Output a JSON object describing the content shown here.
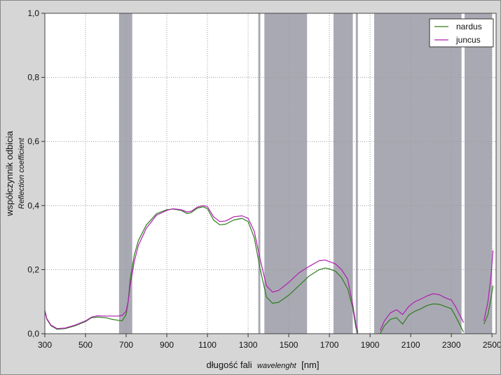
{
  "chart_data": {
    "type": "line",
    "xlabel_main": "długość fali",
    "xlabel_italic": "wavelenght",
    "xlabel_unit": "[nm]",
    "ylabel_main": "współczynnik odbicia",
    "ylabel_italic": "Reflection coefficient",
    "xlim": [
      300,
      2520
    ],
    "ylim": [
      0,
      1.0
    ],
    "x_ticks": [
      300,
      500,
      700,
      900,
      1100,
      1300,
      1500,
      1700,
      1900,
      2100,
      2300,
      2500
    ],
    "x_tick_labels": [
      "300",
      "500",
      "700",
      "900",
      "1100",
      "1300",
      "1500",
      "1700",
      "1900",
      "2100",
      "2300",
      "2500"
    ],
    "y_ticks": [
      0,
      0.2,
      0.4,
      0.6,
      0.8,
      1.0
    ],
    "y_tick_labels": [
      "0,0",
      "0,2",
      "0,4",
      "0,6",
      "0,8",
      "1,0"
    ],
    "grid": true,
    "legend_position": "top-right",
    "shaded_bands": [
      [
        665,
        730
      ],
      [
        1350,
        1360
      ],
      [
        1380,
        1590
      ],
      [
        1720,
        1815
      ],
      [
        1830,
        1840
      ],
      [
        1920,
        2350
      ],
      [
        2365,
        2500
      ]
    ],
    "series": [
      {
        "name": "nardus",
        "color": "#2e7d1e",
        "segments": [
          [
            [
              300,
              0.07
            ],
            [
              310,
              0.045
            ],
            [
              330,
              0.025
            ],
            [
              360,
              0.014
            ],
            [
              400,
              0.016
            ],
            [
              450,
              0.025
            ],
            [
              500,
              0.038
            ],
            [
              530,
              0.05
            ],
            [
              560,
              0.052
            ],
            [
              600,
              0.05
            ],
            [
              630,
              0.045
            ],
            [
              660,
              0.042
            ],
            [
              680,
              0.04
            ],
            [
              700,
              0.06
            ],
            [
              710,
              0.1
            ],
            [
              720,
              0.17
            ],
            [
              740,
              0.245
            ],
            [
              760,
              0.29
            ],
            [
              800,
              0.34
            ],
            [
              850,
              0.375
            ],
            [
              900,
              0.387
            ],
            [
              930,
              0.389
            ],
            [
              970,
              0.385
            ],
            [
              1000,
              0.375
            ],
            [
              1020,
              0.378
            ],
            [
              1050,
              0.392
            ],
            [
              1080,
              0.396
            ],
            [
              1100,
              0.39
            ],
            [
              1130,
              0.355
            ],
            [
              1160,
              0.34
            ],
            [
              1190,
              0.342
            ],
            [
              1230,
              0.355
            ],
            [
              1270,
              0.36
            ],
            [
              1300,
              0.35
            ],
            [
              1330,
              0.3
            ],
            [
              1360,
              0.2
            ],
            [
              1390,
              0.115
            ],
            [
              1420,
              0.095
            ],
            [
              1450,
              0.098
            ],
            [
              1500,
              0.12
            ],
            [
              1550,
              0.15
            ],
            [
              1600,
              0.18
            ],
            [
              1650,
              0.2
            ],
            [
              1680,
              0.205
            ],
            [
              1700,
              0.202
            ],
            [
              1730,
              0.195
            ],
            [
              1760,
              0.175
            ],
            [
              1790,
              0.14
            ],
            [
              1815,
              0.08
            ],
            [
              1830,
              0.02
            ],
            [
              1840,
              0.0
            ]
          ],
          [
            [
              1950,
              0.0
            ],
            [
              1970,
              0.025
            ],
            [
              2000,
              0.045
            ],
            [
              2030,
              0.05
            ],
            [
              2060,
              0.03
            ],
            [
              2090,
              0.058
            ],
            [
              2120,
              0.07
            ],
            [
              2150,
              0.078
            ],
            [
              2180,
              0.088
            ],
            [
              2210,
              0.093
            ],
            [
              2240,
              0.092
            ],
            [
              2270,
              0.085
            ],
            [
              2300,
              0.078
            ],
            [
              2320,
              0.055
            ],
            [
              2340,
              0.03
            ],
            [
              2360,
              0.005
            ]
          ],
          [
            [
              2460,
              0.03
            ],
            [
              2480,
              0.06
            ],
            [
              2495,
              0.11
            ],
            [
              2505,
              0.15
            ]
          ]
        ]
      },
      {
        "name": "juncus",
        "color": "#b01eb0",
        "segments": [
          [
            [
              300,
              0.073
            ],
            [
              310,
              0.047
            ],
            [
              330,
              0.027
            ],
            [
              360,
              0.016
            ],
            [
              400,
              0.018
            ],
            [
              450,
              0.027
            ],
            [
              500,
              0.04
            ],
            [
              530,
              0.052
            ],
            [
              560,
              0.056
            ],
            [
              600,
              0.055
            ],
            [
              630,
              0.055
            ],
            [
              660,
              0.055
            ],
            [
              680,
              0.057
            ],
            [
              700,
              0.07
            ],
            [
              710,
              0.1
            ],
            [
              720,
              0.15
            ],
            [
              740,
              0.225
            ],
            [
              760,
              0.275
            ],
            [
              800,
              0.33
            ],
            [
              850,
              0.37
            ],
            [
              900,
              0.385
            ],
            [
              930,
              0.39
            ],
            [
              970,
              0.387
            ],
            [
              1000,
              0.38
            ],
            [
              1020,
              0.382
            ],
            [
              1050,
              0.395
            ],
            [
              1080,
              0.4
            ],
            [
              1100,
              0.396
            ],
            [
              1130,
              0.365
            ],
            [
              1160,
              0.35
            ],
            [
              1190,
              0.352
            ],
            [
              1230,
              0.365
            ],
            [
              1270,
              0.368
            ],
            [
              1300,
              0.36
            ],
            [
              1330,
              0.32
            ],
            [
              1360,
              0.23
            ],
            [
              1390,
              0.15
            ],
            [
              1420,
              0.13
            ],
            [
              1450,
              0.135
            ],
            [
              1500,
              0.16
            ],
            [
              1550,
              0.19
            ],
            [
              1600,
              0.21
            ],
            [
              1650,
              0.228
            ],
            [
              1680,
              0.23
            ],
            [
              1700,
              0.225
            ],
            [
              1730,
              0.218
            ],
            [
              1760,
              0.2
            ],
            [
              1790,
              0.17
            ],
            [
              1815,
              0.09
            ],
            [
              1830,
              0.03
            ],
            [
              1840,
              0.005
            ]
          ],
          [
            [
              1950,
              0.01
            ],
            [
              1970,
              0.04
            ],
            [
              2000,
              0.065
            ],
            [
              2030,
              0.075
            ],
            [
              2060,
              0.06
            ],
            [
              2090,
              0.085
            ],
            [
              2120,
              0.1
            ],
            [
              2150,
              0.108
            ],
            [
              2180,
              0.118
            ],
            [
              2210,
              0.125
            ],
            [
              2240,
              0.122
            ],
            [
              2270,
              0.112
            ],
            [
              2300,
              0.105
            ],
            [
              2320,
              0.085
            ],
            [
              2340,
              0.06
            ],
            [
              2360,
              0.035
            ]
          ],
          [
            [
              2460,
              0.04
            ],
            [
              2480,
              0.1
            ],
            [
              2495,
              0.18
            ],
            [
              2505,
              0.26
            ]
          ]
        ]
      }
    ]
  }
}
